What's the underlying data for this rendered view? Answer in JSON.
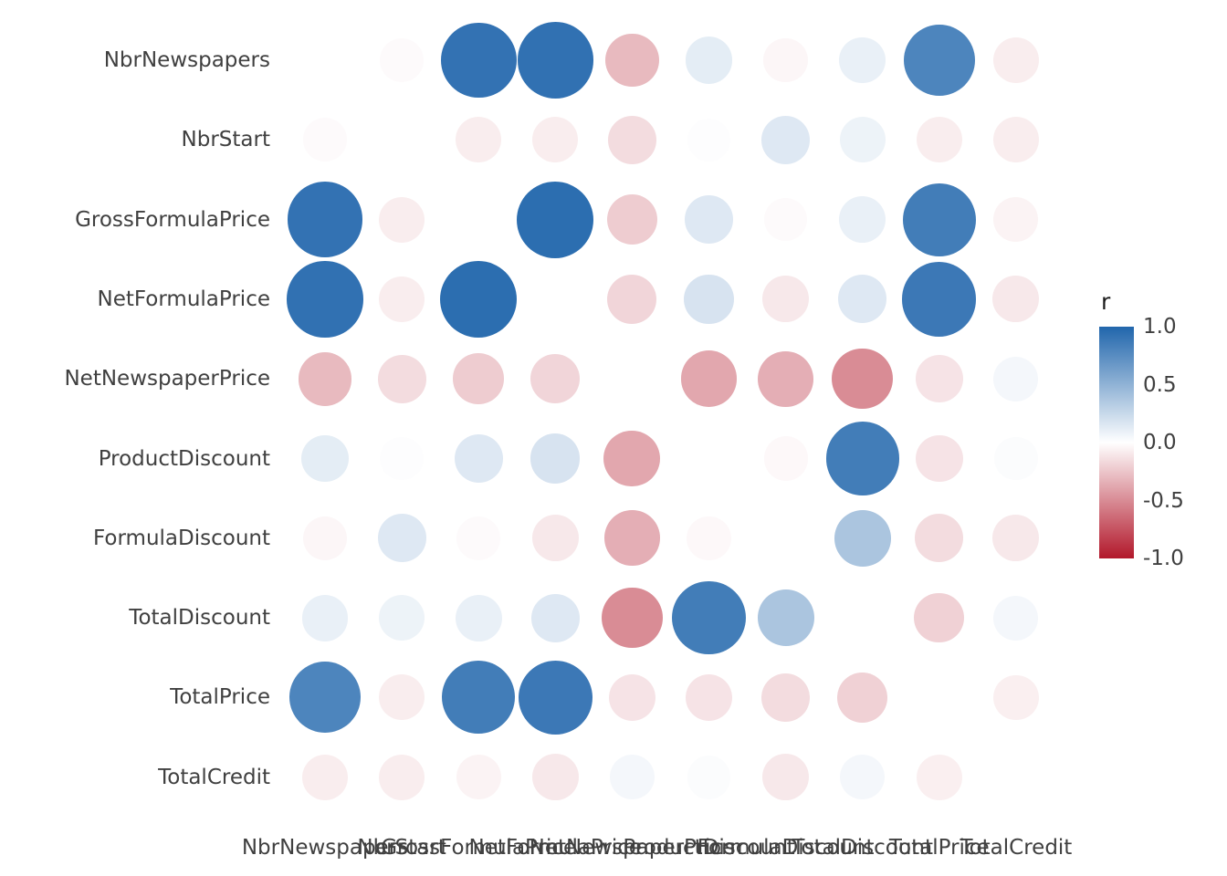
{
  "chart_data": {
    "type": "heatmap",
    "subtype": "correlation-bubble-matrix",
    "title": "",
    "variables": [
      "NbrNewspapers",
      "NbrStart",
      "GrossFormulaPrice",
      "NetFormulaPrice",
      "NetNewspaperPrice",
      "ProductDiscount",
      "FormulaDiscount",
      "TotalDiscount",
      "TotalPrice",
      "TotalCredit"
    ],
    "matrix": [
      [
        null,
        -0.02,
        0.92,
        0.93,
        -0.3,
        0.12,
        -0.04,
        0.1,
        0.8,
        -0.08
      ],
      [
        -0.02,
        null,
        -0.08,
        -0.08,
        -0.15,
        0.01,
        0.15,
        0.08,
        -0.08,
        -0.08
      ],
      [
        0.92,
        -0.08,
        null,
        0.95,
        -0.22,
        0.15,
        -0.02,
        0.1,
        0.85,
        -0.05
      ],
      [
        0.93,
        -0.08,
        0.95,
        null,
        -0.18,
        0.18,
        -0.1,
        0.15,
        0.88,
        -0.1
      ],
      [
        -0.3,
        -0.15,
        -0.22,
        -0.18,
        null,
        -0.38,
        -0.35,
        -0.5,
        -0.12,
        0.05
      ],
      [
        0.12,
        0.01,
        0.15,
        0.18,
        -0.38,
        null,
        -0.03,
        0.85,
        -0.12,
        0.02
      ],
      [
        -0.04,
        0.15,
        -0.02,
        -0.1,
        -0.35,
        -0.03,
        null,
        0.38,
        -0.15,
        -0.1
      ],
      [
        0.1,
        0.08,
        0.1,
        0.15,
        -0.5,
        0.85,
        0.38,
        null,
        -0.2,
        0.05
      ],
      [
        0.8,
        -0.08,
        0.85,
        0.88,
        -0.12,
        -0.12,
        -0.15,
        -0.2,
        null,
        -0.07
      ],
      [
        -0.08,
        -0.08,
        -0.05,
        -0.1,
        0.05,
        0.02,
        -0.1,
        0.05,
        -0.07,
        null
      ]
    ],
    "legend": {
      "title": "r",
      "ticks": [
        "1.0",
        "0.5",
        "0.0",
        "-0.5",
        "-1.0"
      ],
      "min": -1.0,
      "max": 1.0,
      "position": "right"
    },
    "colors": {
      "positive": "#2166AC",
      "zero": "#FFFFFF",
      "negative": "#B2182B"
    },
    "background": "#FFFFFF",
    "grid": false,
    "diagonal_hidden": true
  }
}
